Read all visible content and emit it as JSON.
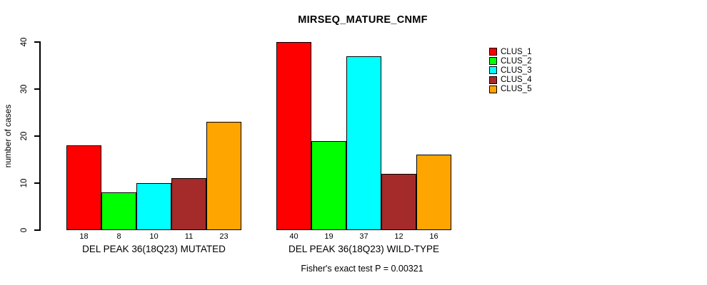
{
  "chart_data": {
    "type": "bar",
    "title": "MIRSEQ_MATURE_CNMF",
    "ylabel": "number of cases",
    "xlabel": "",
    "ylim": [
      0,
      40
    ],
    "yticks": [
      0,
      10,
      20,
      30,
      40
    ],
    "grid": false,
    "legend_position": "top-right",
    "show_bar_values": true,
    "annotation": "Fisher's exact test P = 0.00321",
    "categories": [
      "DEL PEAK 36(18Q23) MUTATED",
      "DEL PEAK 36(18Q23) WILD-TYPE"
    ],
    "series": [
      {
        "name": "CLUS_1",
        "color": "#FF0000",
        "values": [
          18,
          40
        ]
      },
      {
        "name": "CLUS_2",
        "color": "#00FF00",
        "values": [
          8,
          19
        ]
      },
      {
        "name": "CLUS_3",
        "color": "#00FFFF",
        "values": [
          10,
          37
        ]
      },
      {
        "name": "CLUS_4",
        "color": "#A52A2A",
        "values": [
          11,
          12
        ]
      },
      {
        "name": "CLUS_5",
        "color": "#FFA500",
        "values": [
          23,
          16
        ]
      }
    ]
  },
  "colors": {
    "background": "#FFFFFF",
    "axis": "#000000",
    "text": "#000000"
  }
}
